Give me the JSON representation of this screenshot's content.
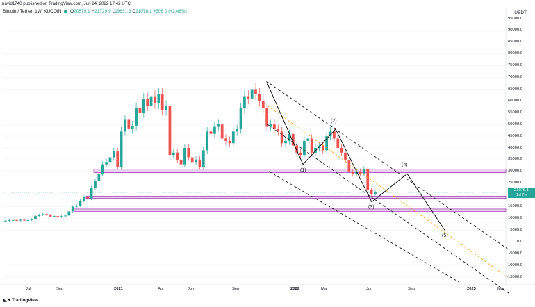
{
  "header": {
    "published_text": "navid1740 published on TradingView.com, Jun 24, 2022 17:42 UTC"
  },
  "symbol_bar": {
    "symbol": "Bitcoin / Tether, 1W, KUCOIN",
    "open_label": "O",
    "open": "20570.1",
    "high_label": "H",
    "high": "21729.9",
    "low_label": "L",
    "low": "19631.3",
    "close_label": "C",
    "close": "21076.1",
    "change": "+506.0 (+2.46%)"
  },
  "price_axis": {
    "currency": "USDT",
    "labels": [
      "95000.0",
      "90000.0",
      "85000.0",
      "80000.0",
      "75000.0",
      "70000.0",
      "65000.0",
      "60000.0",
      "55000.0",
      "50000.0",
      "45000.0",
      "40000.0",
      "35000.0",
      "30000.0",
      "25000.0",
      "20000.0",
      "15000.0",
      "10000.0",
      "5000.0",
      "0.0",
      "-5000.0",
      "-10000.0",
      "-15000.0"
    ],
    "current_price": "21076.1",
    "countdown": "2d 7h"
  },
  "time_axis": {
    "labels": [
      "Jul",
      "Sep",
      "2021",
      "Apr",
      "Jun",
      "Sep",
      "2022",
      "Mar",
      "Jun",
      "Sep",
      "2023",
      "Mar"
    ]
  },
  "waves": {
    "labels": [
      "(1)",
      "(2)",
      "(3)",
      "(4)",
      "(5)"
    ]
  },
  "footer": {
    "logo_text": "TradingView"
  },
  "colors": {
    "up": "#26a69a",
    "down": "#ef5350",
    "zone_fill": "#e1bee7",
    "zone_border": "#9c27b0",
    "orange": "#ff9800",
    "line": "#000000"
  },
  "chart_data": {
    "type": "candlestick",
    "title": "Bitcoin / Tether, 1W, KUCOIN",
    "xlabel": "",
    "ylabel": "",
    "ylim": [
      -17000,
      98000
    ],
    "x_ticks": [
      "Jul",
      "Sep",
      "2021",
      "Apr",
      "Jun",
      "Sep",
      "2022",
      "Mar",
      "Jun",
      "Sep",
      "2023",
      "Mar"
    ],
    "y_ticks": [
      95000,
      90000,
      85000,
      80000,
      75000,
      70000,
      65000,
      60000,
      55000,
      50000,
      45000,
      40000,
      35000,
      30000,
      25000,
      20000,
      15000,
      10000,
      5000,
      0,
      -5000,
      -10000,
      -15000
    ],
    "support_resistance_zones": [
      [
        29500,
        31000
      ],
      [
        18500,
        19500
      ],
      [
        13000,
        14000
      ]
    ],
    "close_path": [
      9000,
      9200,
      9300,
      9100,
      9400,
      9200,
      9300,
      9600,
      11000,
      11500,
      11800,
      11400,
      10800,
      11000,
      10600,
      10900,
      11200,
      13000,
      15000,
      15500,
      17500,
      19000,
      18500,
      23000,
      26000,
      29000,
      33000,
      34000,
      36000,
      38500,
      32000,
      47000,
      52000,
      48000,
      49500,
      57000,
      55000,
      61000,
      58000,
      62000,
      59000,
      63000,
      56000,
      58000,
      37000,
      38000,
      35000,
      33000,
      40000,
      36000,
      34000,
      35000,
      32000,
      39000,
      47000,
      46000,
      49000,
      50000,
      44000,
      43000,
      42000,
      47000,
      48000,
      57000,
      62000,
      61000,
      65000,
      63000,
      60000,
      57000,
      49000,
      50000,
      48000,
      47000,
      42000,
      43000,
      46000,
      41000,
      38000,
      37000,
      43000,
      44000,
      38000,
      40000,
      41000,
      39000,
      45000,
      47000,
      44000,
      40000,
      38000,
      35000,
      30000,
      29000,
      30000,
      29000,
      31000,
      22000,
      20500,
      21076
    ],
    "wave_path": [
      [
        1,
        68000
      ],
      [
        2,
        33000
      ],
      [
        3,
        48000
      ],
      [
        4,
        17000
      ],
      [
        5,
        29000
      ],
      [
        6,
        5000
      ]
    ]
  }
}
